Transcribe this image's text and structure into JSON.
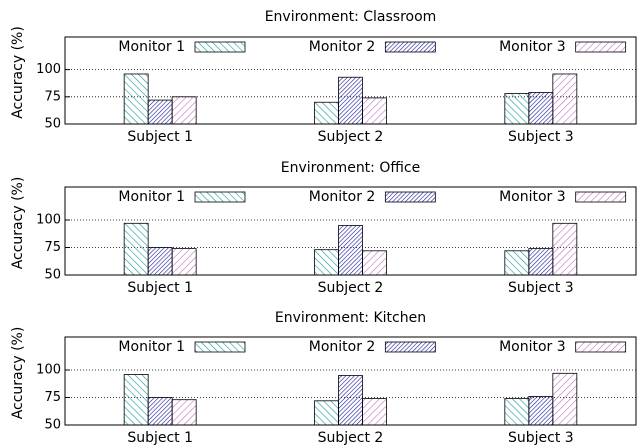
{
  "chart_data": [
    {
      "type": "bar",
      "title": "Environment: Classroom",
      "ylabel": "Accuracy (%)",
      "categories": [
        "Subject 1",
        "Subject 2",
        "Subject 3"
      ],
      "series": [
        {
          "name": "Monitor 1",
          "color": "#1a9a9a",
          "values": [
            96,
            70,
            78
          ]
        },
        {
          "name": "Monitor 2",
          "color": "#1c1c9c",
          "values": [
            72,
            93,
            79
          ]
        },
        {
          "name": "Monitor 3",
          "color": "#c070c0",
          "values": [
            75,
            74,
            96
          ]
        }
      ],
      "ylim": [
        50,
        130
      ],
      "yticks": [
        50,
        75,
        100
      ],
      "grid": true,
      "legend": "top"
    },
    {
      "type": "bar",
      "title": "Environment: Office",
      "ylabel": "Accuracy (%)",
      "categories": [
        "Subject 1",
        "Subject 2",
        "Subject 3"
      ],
      "series": [
        {
          "name": "Monitor 1",
          "color": "#1a9a9a",
          "values": [
            97,
            73,
            72
          ]
        },
        {
          "name": "Monitor 2",
          "color": "#1c1c9c",
          "values": [
            75,
            95,
            74
          ]
        },
        {
          "name": "Monitor 3",
          "color": "#c070c0",
          "values": [
            74,
            72,
            97
          ]
        }
      ],
      "ylim": [
        50,
        130
      ],
      "yticks": [
        50,
        75,
        100
      ],
      "grid": true,
      "legend": "top"
    },
    {
      "type": "bar",
      "title": "Environment: Kitchen",
      "ylabel": "Accuracy (%)",
      "categories": [
        "Subject 1",
        "Subject 2",
        "Subject 3"
      ],
      "series": [
        {
          "name": "Monitor 1",
          "color": "#1a9a9a",
          "values": [
            96,
            72,
            74
          ]
        },
        {
          "name": "Monitor 2",
          "color": "#1c1c9c",
          "values": [
            75,
            95,
            76
          ]
        },
        {
          "name": "Monitor 3",
          "color": "#c070c0",
          "values": [
            73,
            74,
            97
          ]
        }
      ],
      "ylim": [
        50,
        130
      ],
      "yticks": [
        50,
        75,
        100
      ],
      "grid": true,
      "legend": "top"
    }
  ]
}
